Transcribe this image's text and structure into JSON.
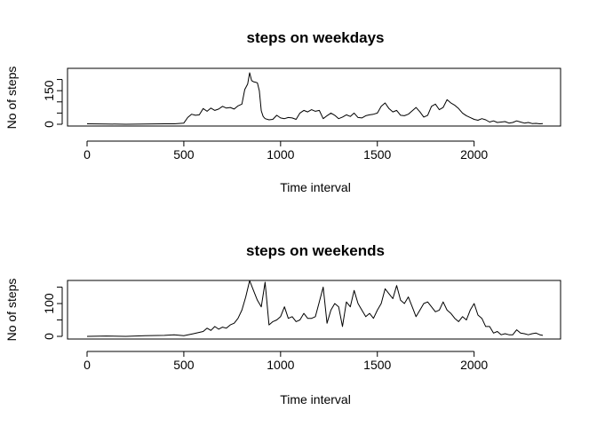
{
  "chart_data": [
    {
      "type": "line",
      "title": "steps on weekdays",
      "xlabel": "Time interval",
      "ylabel": "No of steps",
      "xlim": [
        0,
        2355
      ],
      "ylim": [
        0,
        230
      ],
      "xticks": [
        0,
        500,
        1000,
        1500,
        2000
      ],
      "yticks": [
        0,
        50,
        100,
        150,
        200
      ],
      "yticklabels": [
        "0",
        "",
        "",
        "150",
        ""
      ],
      "grid": false,
      "series": [
        {
          "x": [
            0,
            100,
            200,
            300,
            400,
            450,
            500,
            520,
            540,
            560,
            580,
            600,
            620,
            640,
            660,
            680,
            700,
            720,
            740,
            760,
            780,
            800,
            815,
            830,
            840,
            850,
            860,
            870,
            880,
            890,
            900,
            910,
            920,
            940,
            960,
            980,
            1000,
            1020,
            1040,
            1060,
            1080,
            1100,
            1120,
            1140,
            1160,
            1180,
            1200,
            1220,
            1240,
            1260,
            1280,
            1300,
            1320,
            1340,
            1360,
            1380,
            1400,
            1420,
            1440,
            1460,
            1480,
            1500,
            1520,
            1540,
            1560,
            1580,
            1600,
            1620,
            1640,
            1660,
            1680,
            1700,
            1720,
            1740,
            1760,
            1780,
            1800,
            1820,
            1840,
            1860,
            1880,
            1900,
            1920,
            1940,
            1960,
            1980,
            2000,
            2020,
            2040,
            2060,
            2080,
            2100,
            2120,
            2140,
            2160,
            2180,
            2200,
            2220,
            2240,
            2260,
            2280,
            2300,
            2320,
            2340,
            2355
          ],
          "values": [
            2,
            1,
            0,
            1,
            2,
            2,
            5,
            30,
            45,
            40,
            42,
            70,
            58,
            72,
            62,
            68,
            80,
            72,
            75,
            68,
            82,
            90,
            155,
            180,
            230,
            195,
            190,
            188,
            185,
            150,
            60,
            35,
            25,
            20,
            22,
            40,
            28,
            25,
            30,
            28,
            22,
            50,
            62,
            55,
            65,
            58,
            62,
            25,
            38,
            50,
            40,
            25,
            32,
            42,
            35,
            50,
            30,
            28,
            38,
            42,
            45,
            50,
            80,
            95,
            70,
            55,
            62,
            40,
            38,
            45,
            60,
            75,
            55,
            32,
            40,
            80,
            90,
            65,
            75,
            110,
            95,
            85,
            70,
            50,
            38,
            30,
            22,
            18,
            25,
            20,
            10,
            15,
            8,
            10,
            12,
            5,
            8,
            15,
            10,
            5,
            8,
            3,
            4,
            2,
            3
          ]
        }
      ]
    },
    {
      "type": "line",
      "title": "steps on weekends",
      "xlabel": "Time interval",
      "ylabel": "No of steps",
      "xlim": [
        0,
        2355
      ],
      "ylim": [
        0,
        165
      ],
      "xticks": [
        0,
        500,
        1000,
        1500,
        2000
      ],
      "yticks": [
        0,
        50,
        100,
        150
      ],
      "yticklabels": [
        "0",
        "",
        "100",
        ""
      ],
      "grid": false,
      "series": [
        {
          "x": [
            0,
            100,
            200,
            300,
            400,
            450,
            500,
            550,
            600,
            620,
            640,
            660,
            680,
            700,
            720,
            740,
            760,
            780,
            800,
            820,
            840,
            860,
            880,
            900,
            920,
            940,
            960,
            980,
            1000,
            1020,
            1040,
            1060,
            1080,
            1100,
            1120,
            1140,
            1160,
            1180,
            1200,
            1220,
            1240,
            1260,
            1280,
            1300,
            1320,
            1340,
            1360,
            1380,
            1400,
            1420,
            1440,
            1460,
            1480,
            1500,
            1520,
            1540,
            1560,
            1580,
            1600,
            1620,
            1640,
            1660,
            1680,
            1700,
            1720,
            1740,
            1760,
            1780,
            1800,
            1820,
            1840,
            1860,
            1880,
            1900,
            1920,
            1940,
            1960,
            1980,
            2000,
            2020,
            2040,
            2060,
            2080,
            2100,
            2120,
            2140,
            2160,
            2180,
            2200,
            2220,
            2240,
            2260,
            2280,
            2300,
            2320,
            2340,
            2355
          ],
          "values": [
            0,
            1,
            0,
            2,
            3,
            5,
            2,
            8,
            15,
            25,
            18,
            30,
            22,
            28,
            25,
            35,
            40,
            55,
            80,
            120,
            170,
            140,
            110,
            90,
            165,
            35,
            45,
            50,
            60,
            90,
            55,
            60,
            45,
            50,
            70,
            55,
            55,
            60,
            105,
            150,
            40,
            80,
            100,
            90,
            30,
            105,
            90,
            140,
            100,
            80,
            60,
            70,
            55,
            80,
            100,
            145,
            130,
            115,
            155,
            110,
            100,
            120,
            90,
            60,
            80,
            100,
            105,
            90,
            75,
            80,
            105,
            80,
            70,
            55,
            45,
            60,
            50,
            80,
            100,
            65,
            55,
            30,
            30,
            10,
            15,
            5,
            8,
            5,
            5,
            20,
            10,
            8,
            5,
            8,
            10,
            5,
            3
          ]
        }
      ]
    }
  ]
}
